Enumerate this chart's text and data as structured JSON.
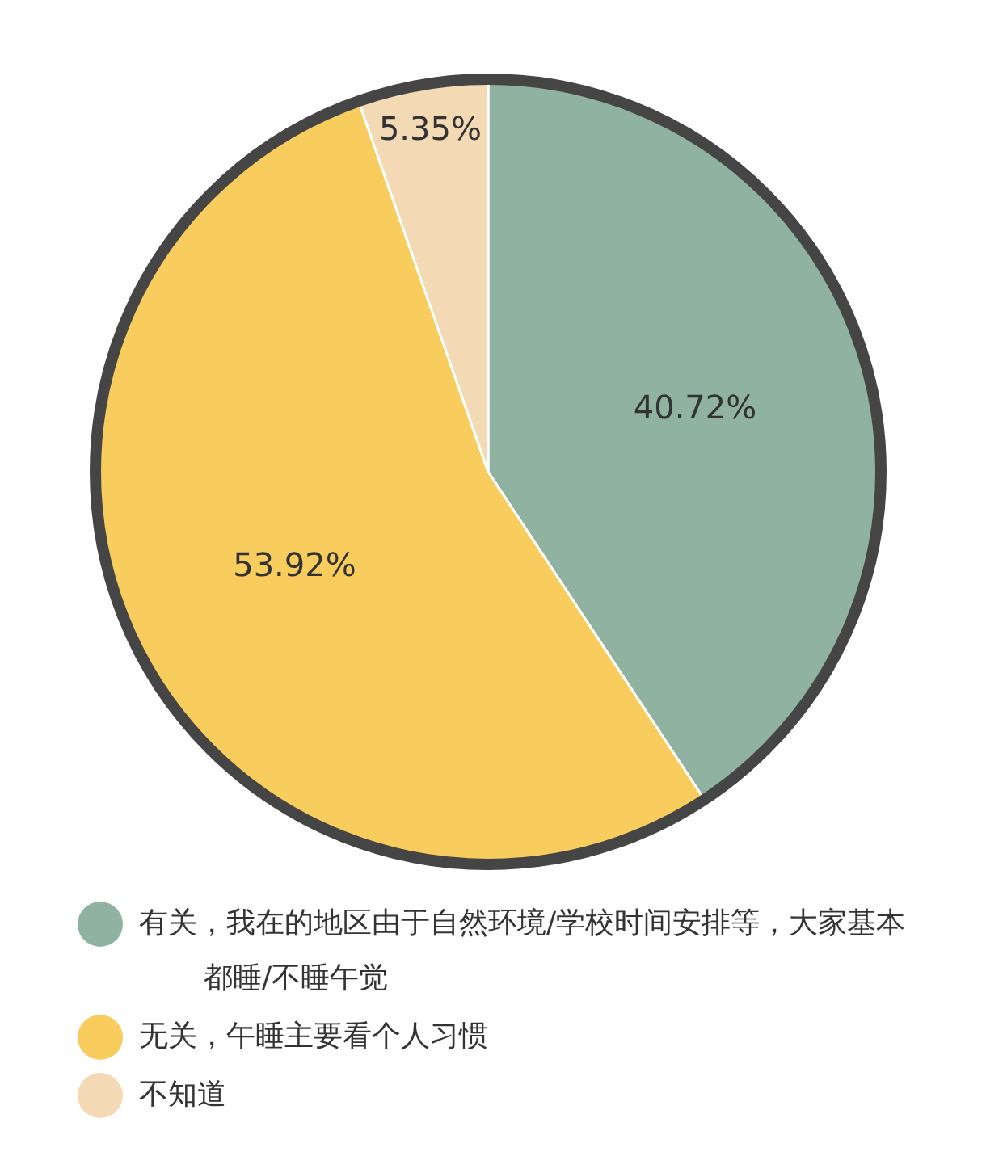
{
  "chart_data": {
    "type": "pie",
    "categories": [
      "有关，我在的地区由于自然环境/学校时间安排等，大家基本都睡/不睡午觉",
      "无关，午睡主要看个人习惯",
      "不知道"
    ],
    "values": [
      40.72,
      53.92,
      5.35
    ],
    "colors": [
      "#8fb3a0",
      "#f8cd5e",
      "#f4d9b5"
    ],
    "value_labels": [
      "40.72%",
      "53.92%",
      "5.35%"
    ],
    "legend": "bottom"
  }
}
